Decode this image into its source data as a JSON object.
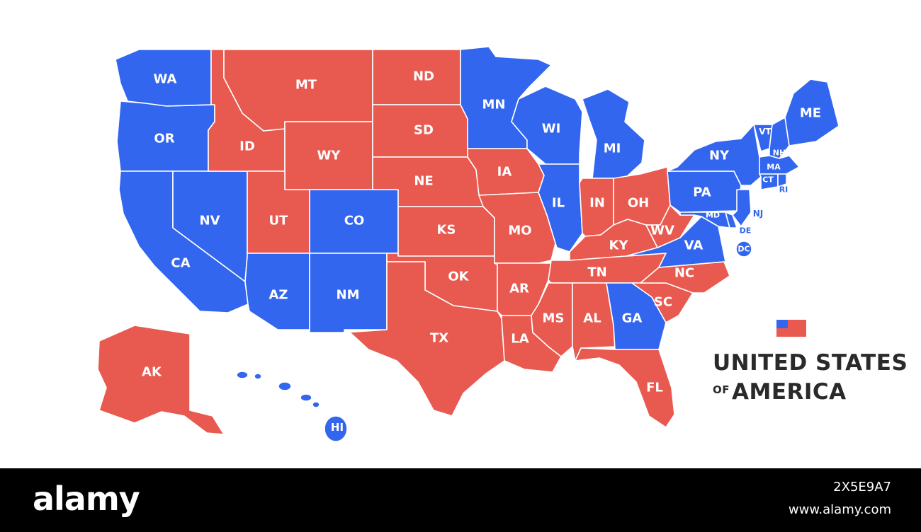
{
  "colors": {
    "blue_states": "#3366ee",
    "red_states": "#e8594f",
    "label": "#ffffff",
    "title_text": "#2a2a2a",
    "footer_bg": "#000000"
  },
  "map": {
    "icon": "flag-icon",
    "states": [
      {
        "abbr": "WA",
        "party": "blue"
      },
      {
        "abbr": "OR",
        "party": "blue"
      },
      {
        "abbr": "CA",
        "party": "blue"
      },
      {
        "abbr": "NV",
        "party": "blue"
      },
      {
        "abbr": "ID",
        "party": "red"
      },
      {
        "abbr": "MT",
        "party": "red"
      },
      {
        "abbr": "WY",
        "party": "red"
      },
      {
        "abbr": "UT",
        "party": "red"
      },
      {
        "abbr": "CO",
        "party": "blue"
      },
      {
        "abbr": "AZ",
        "party": "blue"
      },
      {
        "abbr": "NM",
        "party": "blue"
      },
      {
        "abbr": "ND",
        "party": "red"
      },
      {
        "abbr": "SD",
        "party": "red"
      },
      {
        "abbr": "NE",
        "party": "red"
      },
      {
        "abbr": "KS",
        "party": "red"
      },
      {
        "abbr": "OK",
        "party": "red"
      },
      {
        "abbr": "TX",
        "party": "red"
      },
      {
        "abbr": "MN",
        "party": "blue"
      },
      {
        "abbr": "IA",
        "party": "red"
      },
      {
        "abbr": "MO",
        "party": "red"
      },
      {
        "abbr": "AR",
        "party": "red"
      },
      {
        "abbr": "LA",
        "party": "red"
      },
      {
        "abbr": "WI",
        "party": "blue"
      },
      {
        "abbr": "IL",
        "party": "blue"
      },
      {
        "abbr": "MI",
        "party": "blue"
      },
      {
        "abbr": "IN",
        "party": "red"
      },
      {
        "abbr": "OH",
        "party": "red"
      },
      {
        "abbr": "KY",
        "party": "red"
      },
      {
        "abbr": "TN",
        "party": "red"
      },
      {
        "abbr": "MS",
        "party": "red"
      },
      {
        "abbr": "AL",
        "party": "red"
      },
      {
        "abbr": "GA",
        "party": "blue"
      },
      {
        "abbr": "FL",
        "party": "red"
      },
      {
        "abbr": "SC",
        "party": "red"
      },
      {
        "abbr": "NC",
        "party": "red"
      },
      {
        "abbr": "VA",
        "party": "blue"
      },
      {
        "abbr": "WV",
        "party": "red"
      },
      {
        "abbr": "PA",
        "party": "blue"
      },
      {
        "abbr": "NY",
        "party": "blue"
      },
      {
        "abbr": "VT",
        "party": "blue"
      },
      {
        "abbr": "NH",
        "party": "blue"
      },
      {
        "abbr": "ME",
        "party": "blue"
      },
      {
        "abbr": "MA",
        "party": "blue"
      },
      {
        "abbr": "CT",
        "party": "blue"
      },
      {
        "abbr": "RI",
        "party": "blue"
      },
      {
        "abbr": "NJ",
        "party": "blue"
      },
      {
        "abbr": "DE",
        "party": "blue"
      },
      {
        "abbr": "MD",
        "party": "blue"
      },
      {
        "abbr": "DC",
        "party": "blue"
      },
      {
        "abbr": "AK",
        "party": "red"
      },
      {
        "abbr": "HI",
        "party": "blue"
      }
    ]
  },
  "title": {
    "line1": "UNITED STATES",
    "line2_prefix": "OF",
    "line2_main": "AMERICA"
  },
  "watermark": {
    "logo": "alamy",
    "image_id": "2X5E9A7",
    "url": "www.alamy.com"
  }
}
